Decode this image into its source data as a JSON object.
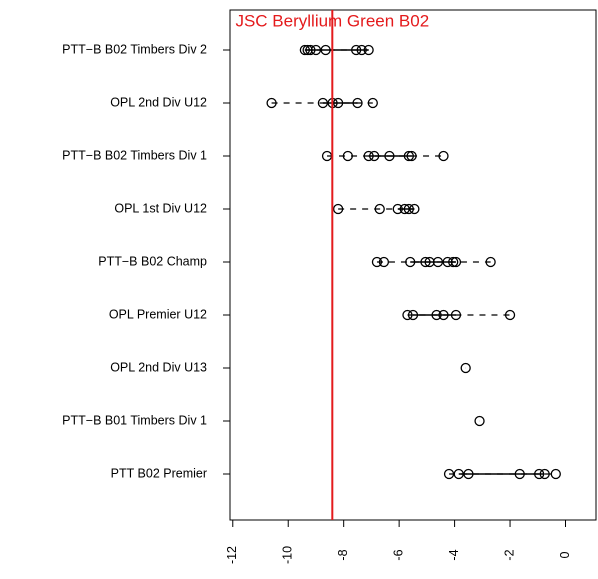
{
  "chart_data": {
    "type": "dot",
    "title": "JSC Beryllium Green B02",
    "categories": [
      "PTT−B B02 Timbers Div 2",
      "OPL 2nd Div U12",
      "PTT−B B02 Timbers Div 1",
      "OPL 1st Div U12",
      "PTT−B B02 Champ",
      "OPL Premier U12",
      "OPL 2nd Div U13",
      "PTT−B B01 Timbers Div 1",
      "PTT B02 Premier"
    ],
    "values": [
      [
        -9.4,
        -9.3,
        -9.2,
        -9.0,
        -8.65,
        -7.55,
        -7.35,
        -7.1
      ],
      [
        -10.6,
        -8.75,
        -8.4,
        -8.2,
        -7.5,
        -6.95
      ],
      [
        -8.6,
        -7.85,
        -7.1,
        -6.9,
        -6.35,
        -5.65,
        -5.55,
        -4.4
      ],
      [
        -8.2,
        -6.7,
        -6.05,
        -5.8,
        -5.65,
        -5.45
      ],
      [
        -6.8,
        -6.55,
        -5.6,
        -5.05,
        -4.9,
        -4.6,
        -4.25,
        -4.05,
        -3.95,
        -2.7
      ],
      [
        -5.7,
        -5.5,
        -4.65,
        -4.4,
        -3.95,
        -2.0
      ],
      [
        -3.6
      ],
      [
        -3.1
      ],
      [
        -4.2,
        -3.85,
        -3.5,
        -1.65,
        -0.95,
        -0.75,
        -0.35
      ]
    ],
    "boxes": [
      [
        -9.4,
        -7.1
      ],
      [
        -8.75,
        -7.5
      ],
      [
        -7.1,
        -5.55
      ],
      [
        -6.05,
        -5.45
      ],
      [
        -5.6,
        -3.95
      ],
      [
        -5.5,
        -3.95
      ],
      [
        -3.6,
        -3.6
      ],
      [
        -3.1,
        -3.1
      ],
      [
        -3.85,
        -0.75
      ]
    ],
    "ref_line": -8.41,
    "ref_color": "#e41a1c",
    "color": "#000000",
    "xlim": [
      -12.1,
      1.1
    ],
    "xticks": [
      -12,
      -10,
      -8,
      -6,
      -4,
      -2,
      0
    ]
  }
}
